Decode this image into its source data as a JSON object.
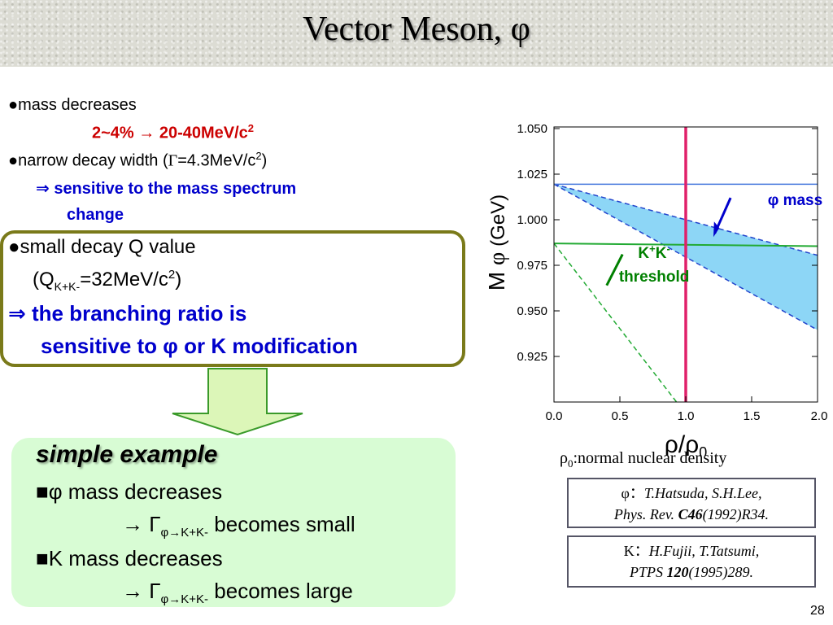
{
  "title": "Vector Meson, φ",
  "bullets": {
    "b1": "mass decreases",
    "b1_sub": "2~4% → 20-40MeV/c",
    "b1_sub_sup": "2",
    "b2_pre": "narrow decay width (",
    "b2_gamma": "Γ",
    "b2_val": "=4.3MeV/c",
    "b2_sup": "2",
    "b2_post": ")",
    "b2_implies1": "⇒ sensitive to the mass spectrum",
    "b2_implies2": "change"
  },
  "qvalue": {
    "line1": "small decay Q value",
    "line2_pre": "(Q",
    "line2_sub": "K+K-",
    "line2_val": "=32MeV/c",
    "line2_sup": "2",
    "line2_post": ")",
    "line3": "⇒ the branching ratio is",
    "line4": "sensitive to φ or K modification"
  },
  "example": {
    "heading": "simple example",
    "item1": "φ mass decreases",
    "item1_result_pre": "→ Γ",
    "item1_result_sub": "φ→K+K-",
    "item1_result_post": " becomes small",
    "item2": "K mass decreases",
    "item2_result_pre": "→ Γ",
    "item2_result_sub": "φ→K+K-",
    "item2_result_post": " becomes large"
  },
  "density_note": "ρ",
  "density_note_sub": "0",
  "density_note_text": ":normal nuclear density",
  "refs": {
    "phi_line1_sym": "φ：",
    "phi_line1": "T.Hatsuda, S.H.Lee,",
    "phi_line2_pre": "Phys. Rev. ",
    "phi_line2_vol": "C46",
    "phi_line2_post": "(1992)R34.",
    "k_line1_sym": "K：",
    "k_line1": "H.Fujii, T.Tatsumi,",
    "k_line2_pre": "PTPS ",
    "k_line2_vol": "120",
    "k_line2_post": "(1995)289."
  },
  "page_number": "28",
  "colors": {
    "band_fill": "#8dd6f6",
    "band_edge": "#2244cc",
    "threshold": "#22aa33",
    "density_line": "#e0206a",
    "frame": "#7a7a1a",
    "example_bg": "#d8fcd4"
  },
  "chart_data": {
    "type": "line",
    "xlabel": "ρ/ρ",
    "xlabel_sub": "0",
    "ylabel": "M",
    "ylabel_phi": "φ",
    "ylabel_unit": "(GeV)",
    "xlim": [
      0.0,
      2.0
    ],
    "ylim": [
      0.9,
      1.05
    ],
    "xticks": [
      "0.0",
      "0.5",
      "1.0",
      "1.5",
      "2.0"
    ],
    "xtick_values": [
      0.0,
      0.5,
      1.0,
      1.5,
      2.0
    ],
    "yticks": [
      "1.050",
      "1.025",
      "1.000",
      "0.975",
      "0.950",
      "0.925"
    ],
    "ytick_values": [
      1.05,
      1.025,
      1.0,
      0.975,
      0.95,
      0.925
    ],
    "phi_mass_band": {
      "label": "φ mass",
      "upper": {
        "x": [
          0.0,
          2.0
        ],
        "y": [
          1.0195,
          0.9805
        ]
      },
      "lower": {
        "x": [
          0.0,
          2.0
        ],
        "y": [
          1.0195,
          0.9395
        ]
      }
    },
    "phi_vacuum": {
      "x": [
        0.0,
        2.0
      ],
      "y": [
        1.0195,
        1.0195
      ]
    },
    "kk_threshold": {
      "label1": "K",
      "label1_sup1": "+",
      "label1_mid": "K",
      "label1_sup2": "-",
      "label2": "threshold",
      "line": {
        "x": [
          0.0,
          2.0
        ],
        "y": [
          0.987,
          0.9855
        ]
      },
      "falling": {
        "x": [
          0.0,
          0.93
        ],
        "y": [
          0.987,
          0.9
        ]
      }
    },
    "normal_density": {
      "x": 1.0
    }
  }
}
